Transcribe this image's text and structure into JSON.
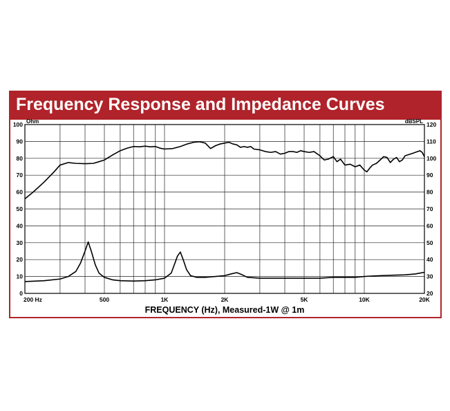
{
  "title": "Frequency Response and Impedance Curves",
  "chart_data": {
    "type": "line",
    "title": "Frequency Response and Impedance Curves",
    "xlabel": "FREQUENCY (Hz), Measured-1W @ 1m",
    "x_scale": "log",
    "xlim": [
      200,
      20000
    ],
    "x_tick_labels": [
      {
        "value": 200,
        "label": "200 Hz"
      },
      {
        "value": 500,
        "label": "500"
      },
      {
        "value": 1000,
        "label": "1K"
      },
      {
        "value": 2000,
        "label": "2K"
      },
      {
        "value": 5000,
        "label": "5K"
      },
      {
        "value": 10000,
        "label": "10K"
      },
      {
        "value": 20000,
        "label": "20K"
      }
    ],
    "left_axis": {
      "unit": "Ohm",
      "range": [
        0,
        100
      ],
      "ticks": [
        0,
        10,
        20,
        30,
        40,
        50,
        60,
        70,
        80,
        90,
        100
      ]
    },
    "right_axis": {
      "unit": "dBSPL",
      "range": [
        20,
        120
      ],
      "ticks": [
        20,
        30,
        40,
        50,
        60,
        70,
        80,
        90,
        100,
        110,
        120
      ]
    },
    "grid": true,
    "series": [
      {
        "axis": "right",
        "color": "#000000",
        "points": [
          [
            200,
            76
          ],
          [
            220,
            80
          ],
          [
            250,
            86
          ],
          [
            280,
            92
          ],
          [
            300,
            96
          ],
          [
            330,
            97.5
          ],
          [
            360,
            97
          ],
          [
            400,
            96.8
          ],
          [
            440,
            97
          ],
          [
            470,
            98
          ],
          [
            500,
            99
          ],
          [
            550,
            102
          ],
          [
            600,
            104.5
          ],
          [
            650,
            106
          ],
          [
            700,
            107
          ],
          [
            750,
            106.8
          ],
          [
            800,
            107.2
          ],
          [
            850,
            106.8
          ],
          [
            900,
            107
          ],
          [
            950,
            106
          ],
          [
            1000,
            105.5
          ],
          [
            1100,
            105.8
          ],
          [
            1200,
            107
          ],
          [
            1300,
            108.5
          ],
          [
            1400,
            109.5
          ],
          [
            1500,
            109.8
          ],
          [
            1600,
            109
          ],
          [
            1700,
            105.8
          ],
          [
            1800,
            107.5
          ],
          [
            1900,
            108.5
          ],
          [
            2000,
            109
          ],
          [
            2100,
            109.5
          ],
          [
            2200,
            108.5
          ],
          [
            2300,
            108
          ],
          [
            2400,
            106.5
          ],
          [
            2500,
            107
          ],
          [
            2600,
            106.5
          ],
          [
            2700,
            107
          ],
          [
            2800,
            105.5
          ],
          [
            3000,
            105
          ],
          [
            3200,
            104
          ],
          [
            3400,
            103.5
          ],
          [
            3600,
            104
          ],
          [
            3800,
            102.5
          ],
          [
            4000,
            103
          ],
          [
            4200,
            104
          ],
          [
            4400,
            104
          ],
          [
            4600,
            103.5
          ],
          [
            4800,
            104.5
          ],
          [
            5000,
            104
          ],
          [
            5300,
            103.5
          ],
          [
            5600,
            104
          ],
          [
            6000,
            101.5
          ],
          [
            6300,
            99
          ],
          [
            6600,
            99.5
          ],
          [
            7000,
            101
          ],
          [
            7300,
            98
          ],
          [
            7600,
            99.5
          ],
          [
            8000,
            96
          ],
          [
            8500,
            96.5
          ],
          [
            9000,
            95
          ],
          [
            9500,
            96
          ],
          [
            10000,
            93
          ],
          [
            10300,
            92
          ],
          [
            10700,
            94.5
          ],
          [
            11000,
            96
          ],
          [
            11500,
            97
          ],
          [
            12000,
            99
          ],
          [
            12500,
            101
          ],
          [
            13000,
            100.5
          ],
          [
            13500,
            97.5
          ],
          [
            14000,
            99.5
          ],
          [
            14500,
            100.5
          ],
          [
            15000,
            98
          ],
          [
            15500,
            99
          ],
          [
            16000,
            101.5
          ],
          [
            16500,
            102
          ],
          [
            17500,
            103
          ],
          [
            18500,
            104
          ],
          [
            19000,
            104.5
          ],
          [
            19500,
            103.5
          ],
          [
            20000,
            101
          ]
        ]
      },
      {
        "axis": "left",
        "color": "#000000",
        "points": [
          [
            200,
            7
          ],
          [
            250,
            7.5
          ],
          [
            300,
            8.5
          ],
          [
            330,
            10
          ],
          [
            360,
            13
          ],
          [
            380,
            18
          ],
          [
            400,
            25
          ],
          [
            415,
            30.5
          ],
          [
            430,
            25
          ],
          [
            450,
            17
          ],
          [
            470,
            12
          ],
          [
            500,
            9.5
          ],
          [
            550,
            8
          ],
          [
            600,
            7.5
          ],
          [
            700,
            7.3
          ],
          [
            800,
            7.5
          ],
          [
            900,
            8
          ],
          [
            1000,
            9
          ],
          [
            1080,
            12
          ],
          [
            1120,
            17
          ],
          [
            1160,
            22
          ],
          [
            1200,
            24.5
          ],
          [
            1240,
            20
          ],
          [
            1290,
            14
          ],
          [
            1350,
            10.5
          ],
          [
            1450,
            9.5
          ],
          [
            1600,
            9.5
          ],
          [
            1800,
            10
          ],
          [
            2000,
            10.5
          ],
          [
            2150,
            11.5
          ],
          [
            2300,
            12.3
          ],
          [
            2450,
            11
          ],
          [
            2600,
            9.5
          ],
          [
            3000,
            9
          ],
          [
            4000,
            9
          ],
          [
            5000,
            9
          ],
          [
            6000,
            9
          ],
          [
            7000,
            9.5
          ],
          [
            8000,
            9.5
          ],
          [
            9000,
            9.5
          ],
          [
            10000,
            10
          ],
          [
            11000,
            10.3
          ],
          [
            12000,
            10.5
          ],
          [
            14000,
            10.8
          ],
          [
            16000,
            11
          ],
          [
            18000,
            11.5
          ],
          [
            19000,
            12
          ],
          [
            20000,
            12.5
          ]
        ]
      }
    ]
  }
}
